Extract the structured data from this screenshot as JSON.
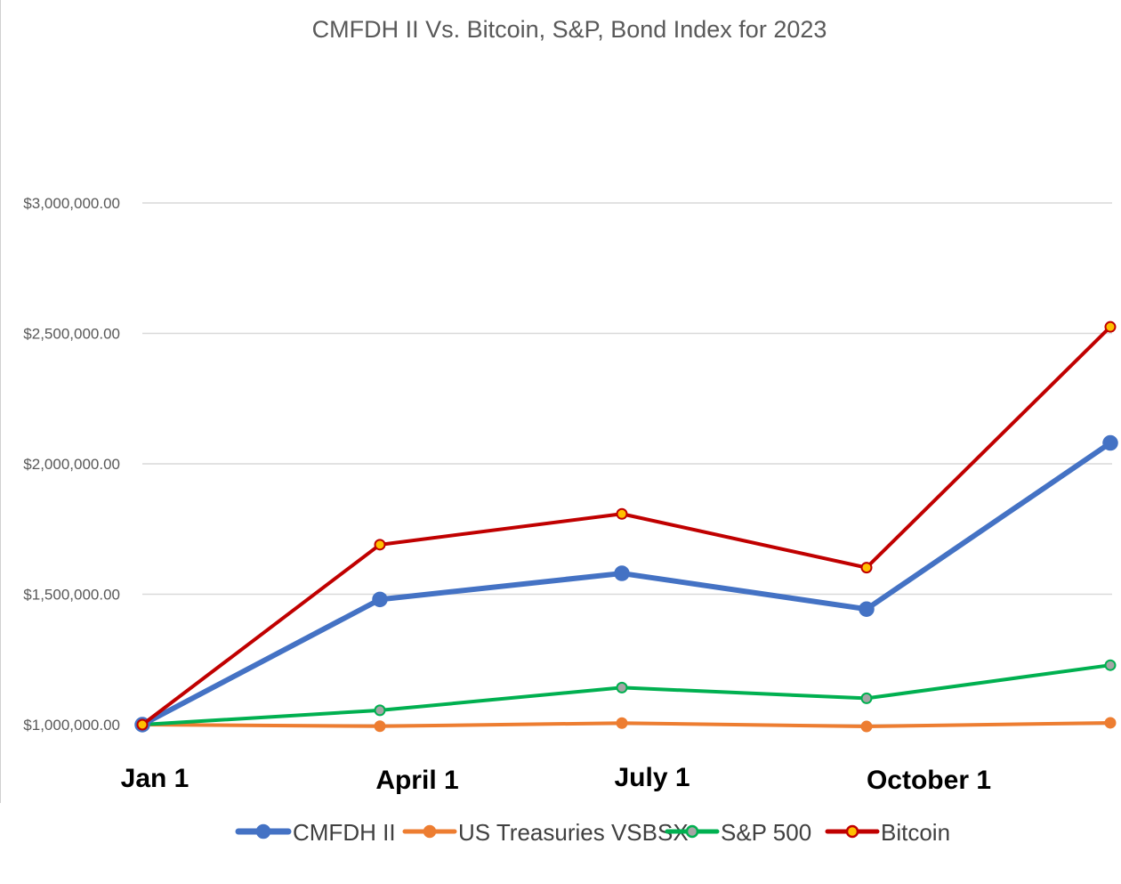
{
  "chart_data": {
    "type": "line",
    "title": "CMFDH II Vs. Bitcoin, S&P, Bond Index for 2023",
    "xlabel": "",
    "ylabel": "",
    "x": [
      "Jan 1",
      "April 1",
      "July 1",
      "October 1",
      ""
    ],
    "x_tick_labels": [
      "Jan 1",
      "April 1",
      "July 1",
      "October 1"
    ],
    "y_tick_labels": [
      "$1,000,000.00",
      "$1,500,000.00",
      "$2,000,000.00",
      "$2,500,000.00",
      "$3,000,000.00"
    ],
    "y_ticks": [
      1000000,
      1500000,
      2000000,
      2500000,
      3000000
    ],
    "ylim": [
      1000000,
      3000000
    ],
    "grid": true,
    "legend_position": "bottom",
    "series": [
      {
        "name": "CMFDH II",
        "color": "#4472c4",
        "marker_fill": "#4472c4",
        "values": [
          1000000,
          1480000,
          1580000,
          1443000,
          2080000
        ]
      },
      {
        "name": "US Treasuries VSBSX",
        "color": "#ed7d31",
        "marker_fill": "#ed7d31",
        "values": [
          1000000,
          994000,
          1006000,
          993000,
          1007000
        ]
      },
      {
        "name": "S&P 500",
        "color": "#00b050",
        "marker_fill": "#a5a5a5",
        "values": [
          1000000,
          1055000,
          1142000,
          1101000,
          1228000
        ]
      },
      {
        "name": "Bitcoin",
        "color": "#c00000",
        "marker_fill": "#ffc000",
        "values": [
          1000000,
          1690000,
          1808000,
          1602000,
          2525000
        ]
      }
    ]
  }
}
